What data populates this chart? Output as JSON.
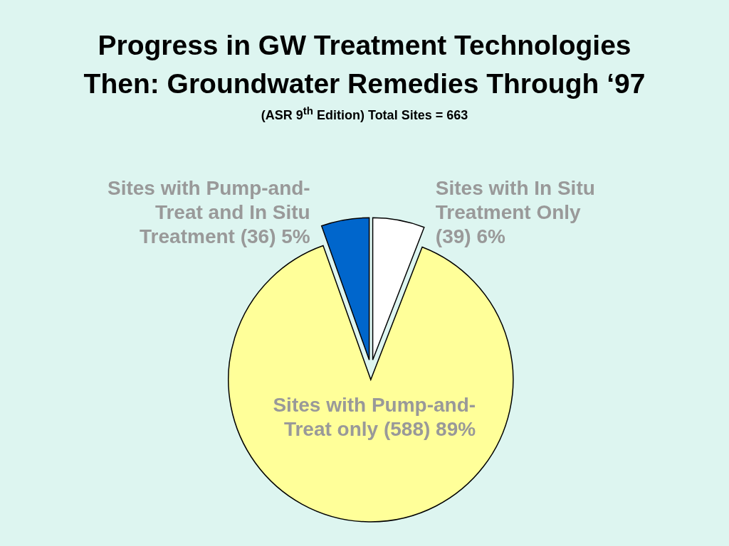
{
  "chart_data": {
    "type": "pie",
    "title": "Progress in GW Treatment Technologies\nThen: Groundwater Remedies Through ‘97",
    "subtitle": "(ASR 9$^{th}$ Edition) Total Sites = 663",
    "categories": [
      "Sites with In Situ Treatment Only",
      "Sites with Pump-and-Treat only",
      "Sites with Pump-and-Treat and In Situ Treatment"
    ],
    "values": [
      39,
      588,
      36
    ],
    "value_labels": [
      "(39) 6%",
      "(588) 89%",
      "(36) 5%"
    ],
    "colors": [
      "#ffffff",
      "#ffff99",
      "#0066cc"
    ]
  }
}
